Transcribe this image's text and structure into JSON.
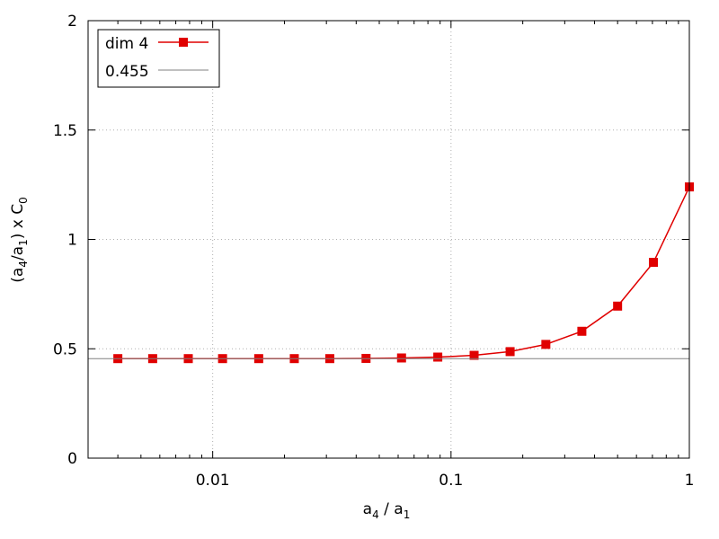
{
  "chart_data": {
    "type": "line",
    "x_scale": "log",
    "xlabel": {
      "base": "a",
      "sub": "4",
      "mid": " / ",
      "base2": "a",
      "sub2": "1"
    },
    "ylabel": {
      "p1": "(a",
      "s1": "4",
      "p2": "/a",
      "s2": "1",
      "p3": ") x C",
      "s3": "0"
    },
    "xlim": [
      0.003,
      1
    ],
    "ylim": [
      0,
      2
    ],
    "x_ticks": [
      {
        "value": 0.01,
        "label": "0.01"
      },
      {
        "value": 0.1,
        "label": "0.1"
      },
      {
        "value": 1,
        "label": "1"
      }
    ],
    "y_ticks": [
      {
        "value": 0,
        "label": "0"
      },
      {
        "value": 0.5,
        "label": "0.5"
      },
      {
        "value": 1,
        "label": "1"
      },
      {
        "value": 1.5,
        "label": "1.5"
      },
      {
        "value": 2,
        "label": "2"
      }
    ],
    "grid": true,
    "legend_position": "top-left",
    "series": [
      {
        "name": "dim 4",
        "color": "#e00000",
        "marker": "square",
        "x": [
          0.004,
          0.0056,
          0.0079,
          0.011,
          0.0156,
          0.022,
          0.031,
          0.044,
          0.062,
          0.088,
          0.125,
          0.177,
          0.25,
          0.354,
          0.5,
          0.707,
          1.0
        ],
        "y": [
          0.455,
          0.455,
          0.455,
          0.455,
          0.455,
          0.455,
          0.455,
          0.456,
          0.458,
          0.462,
          0.47,
          0.487,
          0.52,
          0.58,
          0.695,
          0.895,
          1.24
        ]
      },
      {
        "name": "0.455",
        "color": "#808080",
        "type": "hline",
        "y": 0.455
      }
    ]
  }
}
